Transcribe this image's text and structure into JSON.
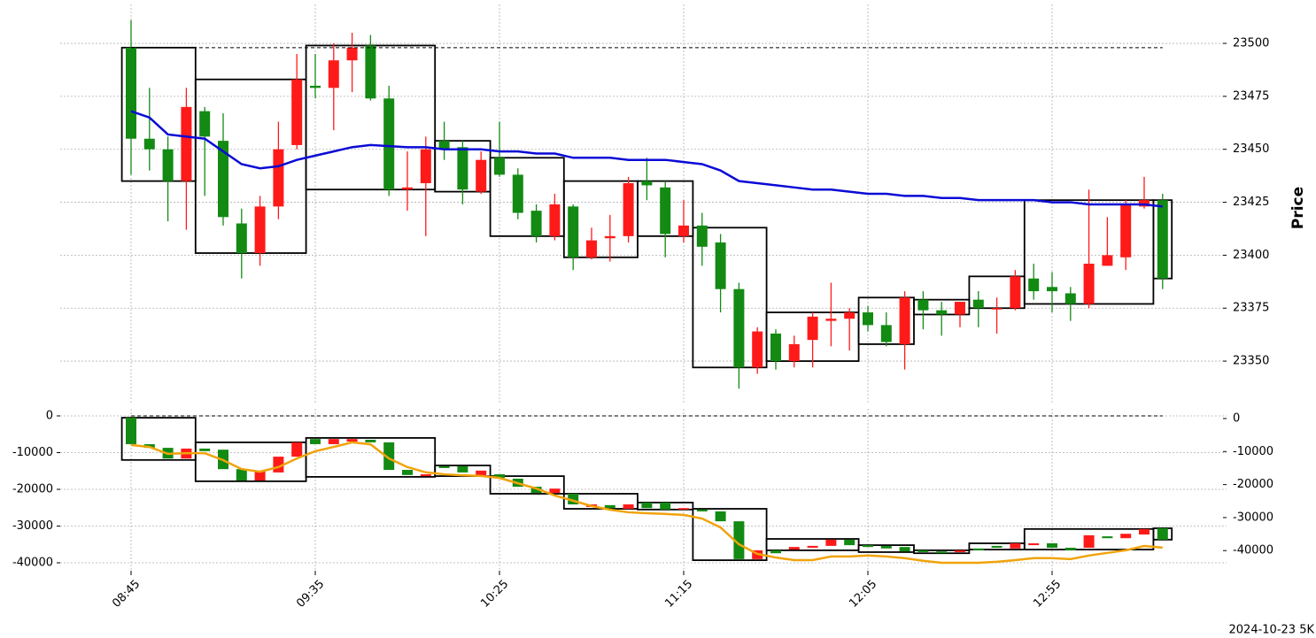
{
  "footer": "2024-10-23 5K",
  "chart_data": [
    {
      "type": "candlestick",
      "y_label": "Price",
      "up_color": "#ff1a1a",
      "down_color": "#138a13",
      "grid": true,
      "ylim": [
        23330.4,
        23518.4
      ],
      "yticks": [
        23350,
        23375,
        23400,
        23425,
        23450,
        23475,
        23500
      ],
      "open": [
        23498,
        23455,
        23450,
        23435,
        23468,
        23454,
        23415,
        23401,
        23423,
        23452,
        23480,
        23479,
        23492,
        23499,
        23474,
        23431,
        23434,
        23454,
        23451,
        23430,
        23446,
        23438,
        23421,
        23409,
        23423,
        23399,
        23408,
        23409,
        23435,
        23432,
        23409,
        23414,
        23406,
        23384,
        23347,
        23363,
        23350,
        23360,
        23369,
        23370,
        23373,
        23367,
        23358,
        23379,
        23374,
        23372,
        23379,
        23375,
        23375,
        23389,
        23385,
        23382,
        23377,
        23395,
        23399,
        23423,
        23426
      ],
      "high": [
        23511,
        23479,
        23456,
        23479,
        23470,
        23467,
        23422,
        23428,
        23463,
        23495,
        23495,
        23500,
        23505,
        23504,
        23480,
        23449,
        23456,
        23463,
        23454,
        23449,
        23463,
        23441,
        23424,
        23429,
        23424,
        23413,
        23419,
        23437,
        23446,
        23435,
        23426,
        23420,
        23410,
        23387,
        23366,
        23365,
        23362,
        23373,
        23387,
        23375,
        23376,
        23373,
        23383,
        23383,
        23378,
        23378,
        23383,
        23380,
        23393,
        23396,
        23392,
        23385,
        23431,
        23418,
        23426,
        23437,
        23429
      ],
      "low": [
        23438,
        23440,
        23416,
        23412,
        23428,
        23414,
        23389,
        23395,
        23417,
        23450,
        23474,
        23459,
        23477,
        23473,
        23428,
        23421,
        23409,
        23445,
        23424,
        23429,
        23437,
        23417,
        23406,
        23407,
        23393,
        23398,
        23397,
        23406,
        23426,
        23399,
        23406,
        23395,
        23373,
        23337,
        23344,
        23346,
        23347,
        23347,
        23357,
        23355,
        23364,
        23357,
        23346,
        23365,
        23362,
        23366,
        23366,
        23363,
        23374,
        23379,
        23373,
        23369,
        23375,
        23395,
        23393,
        23422,
        23384
      ],
      "close": [
        23455,
        23450,
        23435,
        23470,
        23456,
        23418,
        23401,
        23423,
        23450,
        23483,
        23479,
        23492,
        23498,
        23474,
        23431,
        23432,
        23450,
        23450,
        23431,
        23445,
        23438,
        23420,
        23409,
        23424,
        23399,
        23407,
        23409,
        23434,
        23433,
        23410,
        23414,
        23404,
        23384,
        23347,
        23364,
        23350,
        23358,
        23371,
        23370,
        23373,
        23367,
        23359,
        23380,
        23374,
        23372,
        23378,
        23375,
        23375,
        23390,
        23383,
        23383,
        23377,
        23396,
        23400,
        23424,
        23426,
        23389
      ],
      "line": {
        "color": "#0a0ad6",
        "values": [
          23468,
          23465,
          23457,
          23456,
          23455,
          23449,
          23443,
          23441,
          23442,
          23445,
          23447,
          23449,
          23451,
          23452,
          23451.5,
          23451,
          23451,
          23450,
          23450,
          23450,
          23449,
          23449,
          23448,
          23448,
          23446,
          23446,
          23446,
          23445,
          23445,
          23445,
          23444,
          23443,
          23440,
          23435,
          23434,
          23433,
          23432,
          23431,
          23431,
          23430,
          23429,
          23429,
          23428,
          23428,
          23427,
          23427,
          23426,
          23426,
          23426,
          23426,
          23425,
          23425,
          23424,
          23424,
          23424,
          23424,
          23423
        ]
      },
      "reference": 23498,
      "boxes": [
        {
          "start": 0,
          "end": 3,
          "high": 23498,
          "low": 23435
        },
        {
          "start": 4,
          "end": 9,
          "high": 23483,
          "low": 23401
        },
        {
          "start": 10,
          "end": 16,
          "high": 23499,
          "low": 23431
        },
        {
          "start": 17,
          "end": 19,
          "high": 23454,
          "low": 23430
        },
        {
          "start": 20,
          "end": 23,
          "high": 23446,
          "low": 23409
        },
        {
          "start": 24,
          "end": 27,
          "high": 23435,
          "low": 23399
        },
        {
          "start": 28,
          "end": 30,
          "high": 23435,
          "low": 23409
        },
        {
          "start": 31,
          "end": 34,
          "high": 23413,
          "low": 23347
        },
        {
          "start": 35,
          "end": 39,
          "high": 23373,
          "low": 23350
        },
        {
          "start": 40,
          "end": 42,
          "high": 23380,
          "low": 23358
        },
        {
          "start": 43,
          "end": 45,
          "high": 23379,
          "low": 23372
        },
        {
          "start": 46,
          "end": 48,
          "high": 23390,
          "low": 23375
        },
        {
          "start": 49,
          "end": 55,
          "high": 23426,
          "low": 23377
        },
        {
          "start": 56,
          "end": 56,
          "high": 23426,
          "low": 23389
        }
      ]
    },
    {
      "type": "candlestick",
      "up_color": "#ff1a1a",
      "down_color": "#138a13",
      "grid": true,
      "categories": [
        "08:45",
        null,
        null,
        null,
        null,
        null,
        null,
        null,
        null,
        null,
        "09:35",
        null,
        null,
        null,
        null,
        null,
        null,
        null,
        null,
        null,
        "10:25",
        null,
        null,
        null,
        null,
        null,
        null,
        null,
        null,
        null,
        "11:15",
        null,
        null,
        null,
        null,
        null,
        null,
        null,
        null,
        null,
        "12:05",
        null,
        null,
        null,
        null,
        null,
        null,
        null,
        null,
        null,
        "12:55",
        null,
        null,
        null,
        null,
        null,
        null
      ],
      "ylim": [
        -42170,
        1930
      ],
      "yticks": [
        0,
        -10000,
        -20000,
        -30000,
        -40000
      ],
      "y2lim": [
        -46110,
        2950
      ],
      "y2ticks": [
        0,
        -10000,
        -20000,
        -30000,
        -40000
      ],
      "open": [
        -500,
        -7700,
        -8700,
        -11600,
        -8900,
        -9200,
        -14500,
        -17600,
        -15400,
        -11100,
        -6300,
        -7700,
        -7000,
        -6500,
        -7200,
        -14700,
        -16400,
        -13700,
        -13700,
        -16400,
        -15900,
        -17100,
        -19300,
        -21000,
        -21200,
        -24800,
        -24300,
        -25300,
        -23600,
        -23600,
        -25500,
        -25500,
        -26000,
        -28700,
        -39000,
        -36600,
        -36400,
        -35900,
        -35400,
        -33700,
        -35200,
        -35400,
        -35700,
        -36600,
        -36900,
        -37100,
        -36100,
        -35400,
        -36100,
        -35200,
        -34700,
        -35900,
        -35900,
        -32800,
        -33300,
        -32300,
        -30600
      ],
      "close": [
        -7700,
        -8700,
        -11600,
        -8900,
        -9600,
        -14500,
        -17600,
        -14900,
        -11100,
        -7200,
        -7700,
        -6300,
        -6300,
        -7200,
        -14700,
        -16100,
        -15900,
        -14200,
        -15400,
        -14900,
        -16900,
        -19300,
        -21000,
        -19800,
        -24100,
        -24100,
        -25100,
        -24100,
        -25100,
        -25500,
        -25100,
        -26000,
        -28700,
        -39000,
        -36600,
        -37400,
        -35700,
        -35400,
        -33700,
        -35200,
        -35700,
        -36100,
        -36900,
        -37100,
        -37400,
        -36600,
        -36600,
        -35900,
        -34700,
        -34700,
        -35900,
        -36600,
        -32500,
        -33300,
        -32100,
        -30800,
        -33700
      ],
      "line": {
        "color": "#f0a30a",
        "axis": "y2",
        "values": [
          -8000,
          -8600,
          -10700,
          -10500,
          -10500,
          -12600,
          -15300,
          -16100,
          -14700,
          -12100,
          -9900,
          -8600,
          -7200,
          -7800,
          -12100,
          -14700,
          -16300,
          -16900,
          -17200,
          -17400,
          -18000,
          -19600,
          -21200,
          -23300,
          -24900,
          -26500,
          -27600,
          -28400,
          -28700,
          -28900,
          -29200,
          -30300,
          -33000,
          -38100,
          -41000,
          -42100,
          -42900,
          -42900,
          -41800,
          -41800,
          -41500,
          -41800,
          -42300,
          -43100,
          -43700,
          -43700,
          -43700,
          -43400,
          -42900,
          -42300,
          -42300,
          -42600,
          -41500,
          -40700,
          -39900,
          -38600,
          -39100
        ]
      },
      "reference": 0,
      "boxes": [
        {
          "start": 0,
          "end": 3,
          "high": -500,
          "low": -12000
        },
        {
          "start": 4,
          "end": 9,
          "high": -7200,
          "low": -17800
        },
        {
          "start": 10,
          "end": 16,
          "high": -6000,
          "low": -16600
        },
        {
          "start": 17,
          "end": 19,
          "high": -13500,
          "low": -16400
        },
        {
          "start": 20,
          "end": 23,
          "high": -16400,
          "low": -21200
        },
        {
          "start": 24,
          "end": 27,
          "high": -21200,
          "low": -25300
        },
        {
          "start": 28,
          "end": 30,
          "high": -23600,
          "low": -25500
        },
        {
          "start": 31,
          "end": 34,
          "high": -25300,
          "low": -39300
        },
        {
          "start": 35,
          "end": 39,
          "high": -33500,
          "low": -36600
        },
        {
          "start": 40,
          "end": 42,
          "high": -35200,
          "low": -37100
        },
        {
          "start": 43,
          "end": 45,
          "high": -36600,
          "low": -37400
        },
        {
          "start": 46,
          "end": 48,
          "high": -34700,
          "low": -36400
        },
        {
          "start": 49,
          "end": 55,
          "high": -30800,
          "low": -36400
        },
        {
          "start": 56,
          "end": 56,
          "high": -30600,
          "low": -33700
        }
      ]
    }
  ]
}
